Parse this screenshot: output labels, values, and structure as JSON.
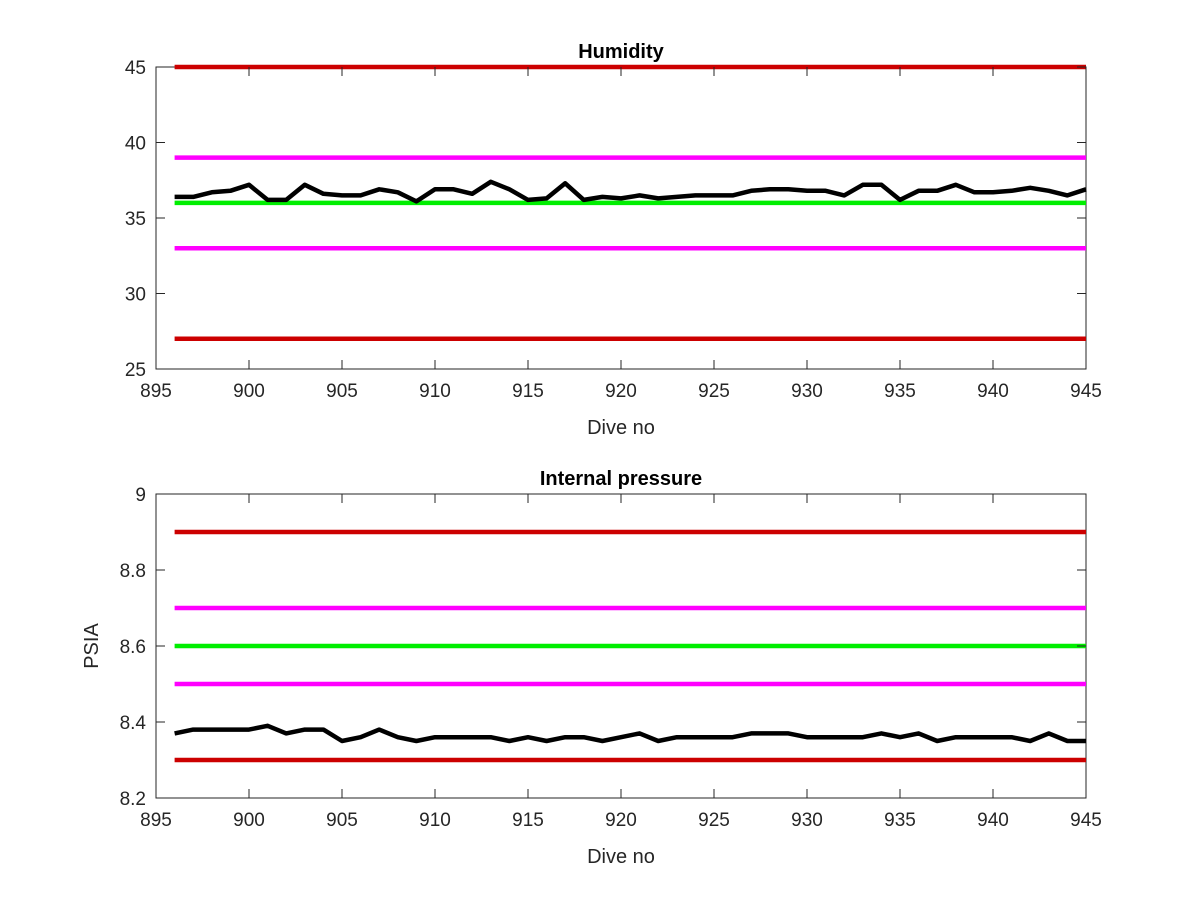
{
  "colors": {
    "critical_limit": "#cc0000",
    "warning_limit": "#ff00ff",
    "nominal": "#00ee00",
    "measurement": "#000000"
  },
  "chart_data": [
    {
      "type": "line",
      "title": "Humidity",
      "xlabel": "Dive no",
      "ylabel": "",
      "xlim": [
        895,
        945
      ],
      "ylim": [
        25,
        45
      ],
      "xticks": [
        "895",
        "900",
        "905",
        "910",
        "915",
        "920",
        "925",
        "930",
        "935",
        "940",
        "945"
      ],
      "yticks": [
        "25",
        "30",
        "35",
        "40",
        "45"
      ],
      "grid": false,
      "thresholds": [
        {
          "value": 45,
          "color": "#cc0000"
        },
        {
          "value": 39,
          "color": "#ff00ff"
        },
        {
          "value": 36,
          "color": "#00ee00"
        },
        {
          "value": 33,
          "color": "#ff00ff"
        },
        {
          "value": 27,
          "color": "#cc0000"
        }
      ],
      "series": [
        {
          "color": "#000000",
          "x": [
            896,
            897,
            898,
            899,
            900,
            901,
            902,
            903,
            904,
            905,
            906,
            907,
            908,
            909,
            910,
            911,
            912,
            913,
            914,
            915,
            916,
            917,
            918,
            919,
            920,
            921,
            922,
            923,
            924,
            925,
            926,
            927,
            928,
            929,
            930,
            931,
            932,
            933,
            934,
            935,
            936,
            937,
            938,
            939,
            940,
            941,
            942,
            943,
            944,
            945
          ],
          "y": [
            36.4,
            36.4,
            36.7,
            36.8,
            37.2,
            36.2,
            36.2,
            37.2,
            36.6,
            36.5,
            36.5,
            36.9,
            36.7,
            36.1,
            36.9,
            36.9,
            36.6,
            37.4,
            36.9,
            36.2,
            36.3,
            37.3,
            36.2,
            36.4,
            36.3,
            36.5,
            36.3,
            36.4,
            36.5,
            36.5,
            36.5,
            36.8,
            36.9,
            36.9,
            36.8,
            36.8,
            36.5,
            37.2,
            37.2,
            36.2,
            36.8,
            36.8,
            37.2,
            36.7,
            36.7,
            36.8,
            37.0,
            36.8,
            36.5,
            36.9
          ]
        }
      ]
    },
    {
      "type": "line",
      "title": "Internal pressure",
      "xlabel": "Dive no",
      "ylabel": "PSIA",
      "xlim": [
        895,
        945
      ],
      "ylim": [
        8.2,
        9.0
      ],
      "xticks": [
        "895",
        "900",
        "905",
        "910",
        "915",
        "920",
        "925",
        "930",
        "935",
        "940",
        "945"
      ],
      "yticks": [
        "8.2",
        "8.4",
        "8.6",
        "8.8",
        "9"
      ],
      "grid": false,
      "thresholds": [
        {
          "value": 8.9,
          "color": "#cc0000"
        },
        {
          "value": 8.7,
          "color": "#ff00ff"
        },
        {
          "value": 8.6,
          "color": "#00ee00"
        },
        {
          "value": 8.5,
          "color": "#ff00ff"
        },
        {
          "value": 8.3,
          "color": "#cc0000"
        }
      ],
      "series": [
        {
          "color": "#000000",
          "x": [
            896,
            897,
            898,
            899,
            900,
            901,
            902,
            903,
            904,
            905,
            906,
            907,
            908,
            909,
            910,
            911,
            912,
            913,
            914,
            915,
            916,
            917,
            918,
            919,
            920,
            921,
            922,
            923,
            924,
            925,
            926,
            927,
            928,
            929,
            930,
            931,
            932,
            933,
            934,
            935,
            936,
            937,
            938,
            939,
            940,
            941,
            942,
            943,
            944,
            945
          ],
          "y": [
            8.37,
            8.38,
            8.38,
            8.38,
            8.38,
            8.39,
            8.37,
            8.38,
            8.38,
            8.35,
            8.36,
            8.38,
            8.36,
            8.35,
            8.36,
            8.36,
            8.36,
            8.36,
            8.35,
            8.36,
            8.35,
            8.36,
            8.36,
            8.35,
            8.36,
            8.37,
            8.35,
            8.36,
            8.36,
            8.36,
            8.36,
            8.37,
            8.37,
            8.37,
            8.36,
            8.36,
            8.36,
            8.36,
            8.37,
            8.36,
            8.37,
            8.35,
            8.36,
            8.36,
            8.36,
            8.36,
            8.35,
            8.37,
            8.35,
            8.35
          ]
        }
      ]
    }
  ]
}
